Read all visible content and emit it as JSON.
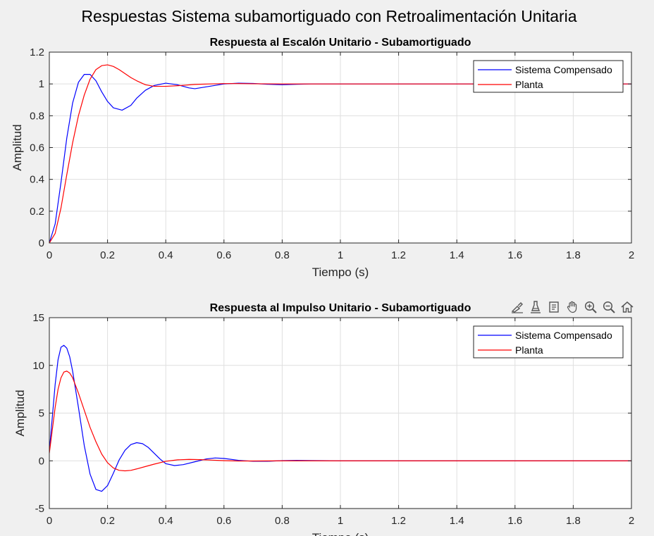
{
  "figure": {
    "title": "Respuestas Sistema subamortiguado con Retroalimentación Unitaria",
    "background": "#f0f0f0"
  },
  "toolbar": {
    "icons": [
      "brush-icon",
      "data-tips-icon",
      "rotate-icon",
      "pan-hand-icon",
      "zoom-in-icon",
      "zoom-out-icon",
      "home-icon"
    ]
  },
  "chart_data": [
    {
      "type": "line",
      "title": "Respuesta al Escalón Unitario - Subamortiguado",
      "xlabel": "Tiempo (s)",
      "ylabel": "Amplitud",
      "xlim": [
        0,
        2
      ],
      "ylim": [
        0,
        1.2
      ],
      "xticks": [
        "0",
        "0.2",
        "0.4",
        "0.6",
        "0.8",
        "1",
        "1.2",
        "1.4",
        "1.6",
        "1.8",
        "2"
      ],
      "yticks": [
        "0",
        "0.2",
        "0.4",
        "0.6",
        "0.8",
        "1",
        "1.2"
      ],
      "grid": true,
      "legend": "top-right",
      "series": [
        {
          "name": "Sistema Compensado",
          "color": "#0000ff",
          "x": [
            0,
            0.02,
            0.04,
            0.06,
            0.08,
            0.1,
            0.12,
            0.14,
            0.16,
            0.18,
            0.2,
            0.22,
            0.25,
            0.28,
            0.3,
            0.33,
            0.36,
            0.4,
            0.44,
            0.48,
            0.5,
            0.55,
            0.6,
            0.65,
            0.7,
            0.75,
            0.8,
            0.85,
            0.9,
            1.0,
            1.2,
            1.5,
            2.0
          ],
          "y": [
            0,
            0.12,
            0.38,
            0.66,
            0.88,
            1.01,
            1.06,
            1.06,
            1.02,
            0.95,
            0.89,
            0.85,
            0.835,
            0.865,
            0.91,
            0.96,
            0.99,
            1.005,
            0.995,
            0.975,
            0.97,
            0.985,
            1.0,
            1.005,
            1.003,
            0.998,
            0.995,
            0.998,
            1.0,
            1.0,
            1.0,
            1.0,
            1.0
          ]
        },
        {
          "name": "Planta",
          "color": "#ff0000",
          "x": [
            0,
            0.02,
            0.04,
            0.06,
            0.08,
            0.1,
            0.12,
            0.14,
            0.16,
            0.18,
            0.2,
            0.22,
            0.24,
            0.26,
            0.28,
            0.3,
            0.33,
            0.36,
            0.4,
            0.45,
            0.5,
            0.55,
            0.6,
            0.65,
            0.7,
            0.8,
            0.9,
            1.0,
            1.5,
            2.0
          ],
          "y": [
            0,
            0.06,
            0.22,
            0.43,
            0.63,
            0.8,
            0.93,
            1.03,
            1.09,
            1.115,
            1.12,
            1.11,
            1.09,
            1.065,
            1.04,
            1.02,
            0.995,
            0.985,
            0.985,
            0.99,
            0.997,
            1.0,
            1.002,
            1.002,
            1.001,
            1.0,
            1.0,
            1.0,
            1.0,
            1.0
          ]
        }
      ]
    },
    {
      "type": "line",
      "title": "Respuesta al Impulso Unitario  - Subamortiguado",
      "xlabel": "Tiempo (s)",
      "ylabel": "Amplitud",
      "xlim": [
        0,
        2
      ],
      "ylim": [
        -5,
        15
      ],
      "xticks": [
        "0",
        "0.2",
        "0.4",
        "0.6",
        "0.8",
        "1",
        "1.2",
        "1.4",
        "1.6",
        "1.8",
        "2"
      ],
      "yticks": [
        "-5",
        "0",
        "5",
        "10",
        "15"
      ],
      "grid": true,
      "legend": "top-right",
      "series": [
        {
          "name": "Sistema Compensado",
          "color": "#0000ff",
          "x": [
            0,
            0.01,
            0.02,
            0.03,
            0.04,
            0.05,
            0.06,
            0.07,
            0.08,
            0.1,
            0.12,
            0.14,
            0.16,
            0.18,
            0.2,
            0.22,
            0.24,
            0.26,
            0.28,
            0.3,
            0.32,
            0.34,
            0.36,
            0.38,
            0.4,
            0.43,
            0.46,
            0.5,
            0.54,
            0.57,
            0.6,
            0.65,
            0.7,
            0.75,
            0.8,
            0.85,
            0.9,
            1.0,
            1.5,
            2.0
          ],
          "y": [
            1.0,
            4.5,
            8.0,
            10.6,
            11.9,
            12.1,
            11.8,
            10.9,
            9.4,
            5.6,
            1.6,
            -1.4,
            -3.0,
            -3.2,
            -2.6,
            -1.3,
            0.1,
            1.1,
            1.7,
            1.9,
            1.8,
            1.4,
            0.8,
            0.2,
            -0.3,
            -0.5,
            -0.4,
            -0.1,
            0.2,
            0.3,
            0.25,
            0.05,
            -0.05,
            -0.05,
            0.02,
            0.05,
            0.03,
            0.0,
            0.0,
            0.0
          ]
        },
        {
          "name": "Planta",
          "color": "#ff0000",
          "x": [
            0,
            0.01,
            0.02,
            0.03,
            0.04,
            0.05,
            0.06,
            0.07,
            0.08,
            0.1,
            0.12,
            0.14,
            0.16,
            0.18,
            0.2,
            0.22,
            0.24,
            0.26,
            0.28,
            0.3,
            0.33,
            0.36,
            0.4,
            0.44,
            0.48,
            0.52,
            0.56,
            0.6,
            0.65,
            0.7,
            0.8,
            0.9,
            1.0,
            1.5,
            2.0
          ],
          "y": [
            0.8,
            3.2,
            5.6,
            7.5,
            8.7,
            9.3,
            9.4,
            9.2,
            8.7,
            7.1,
            5.3,
            3.5,
            2.0,
            0.7,
            -0.2,
            -0.75,
            -1.0,
            -1.05,
            -1.0,
            -0.85,
            -0.6,
            -0.35,
            -0.05,
            0.1,
            0.15,
            0.12,
            0.07,
            0.02,
            -0.02,
            -0.02,
            0.0,
            0.0,
            0.0,
            0.0,
            0.0
          ]
        }
      ]
    }
  ]
}
